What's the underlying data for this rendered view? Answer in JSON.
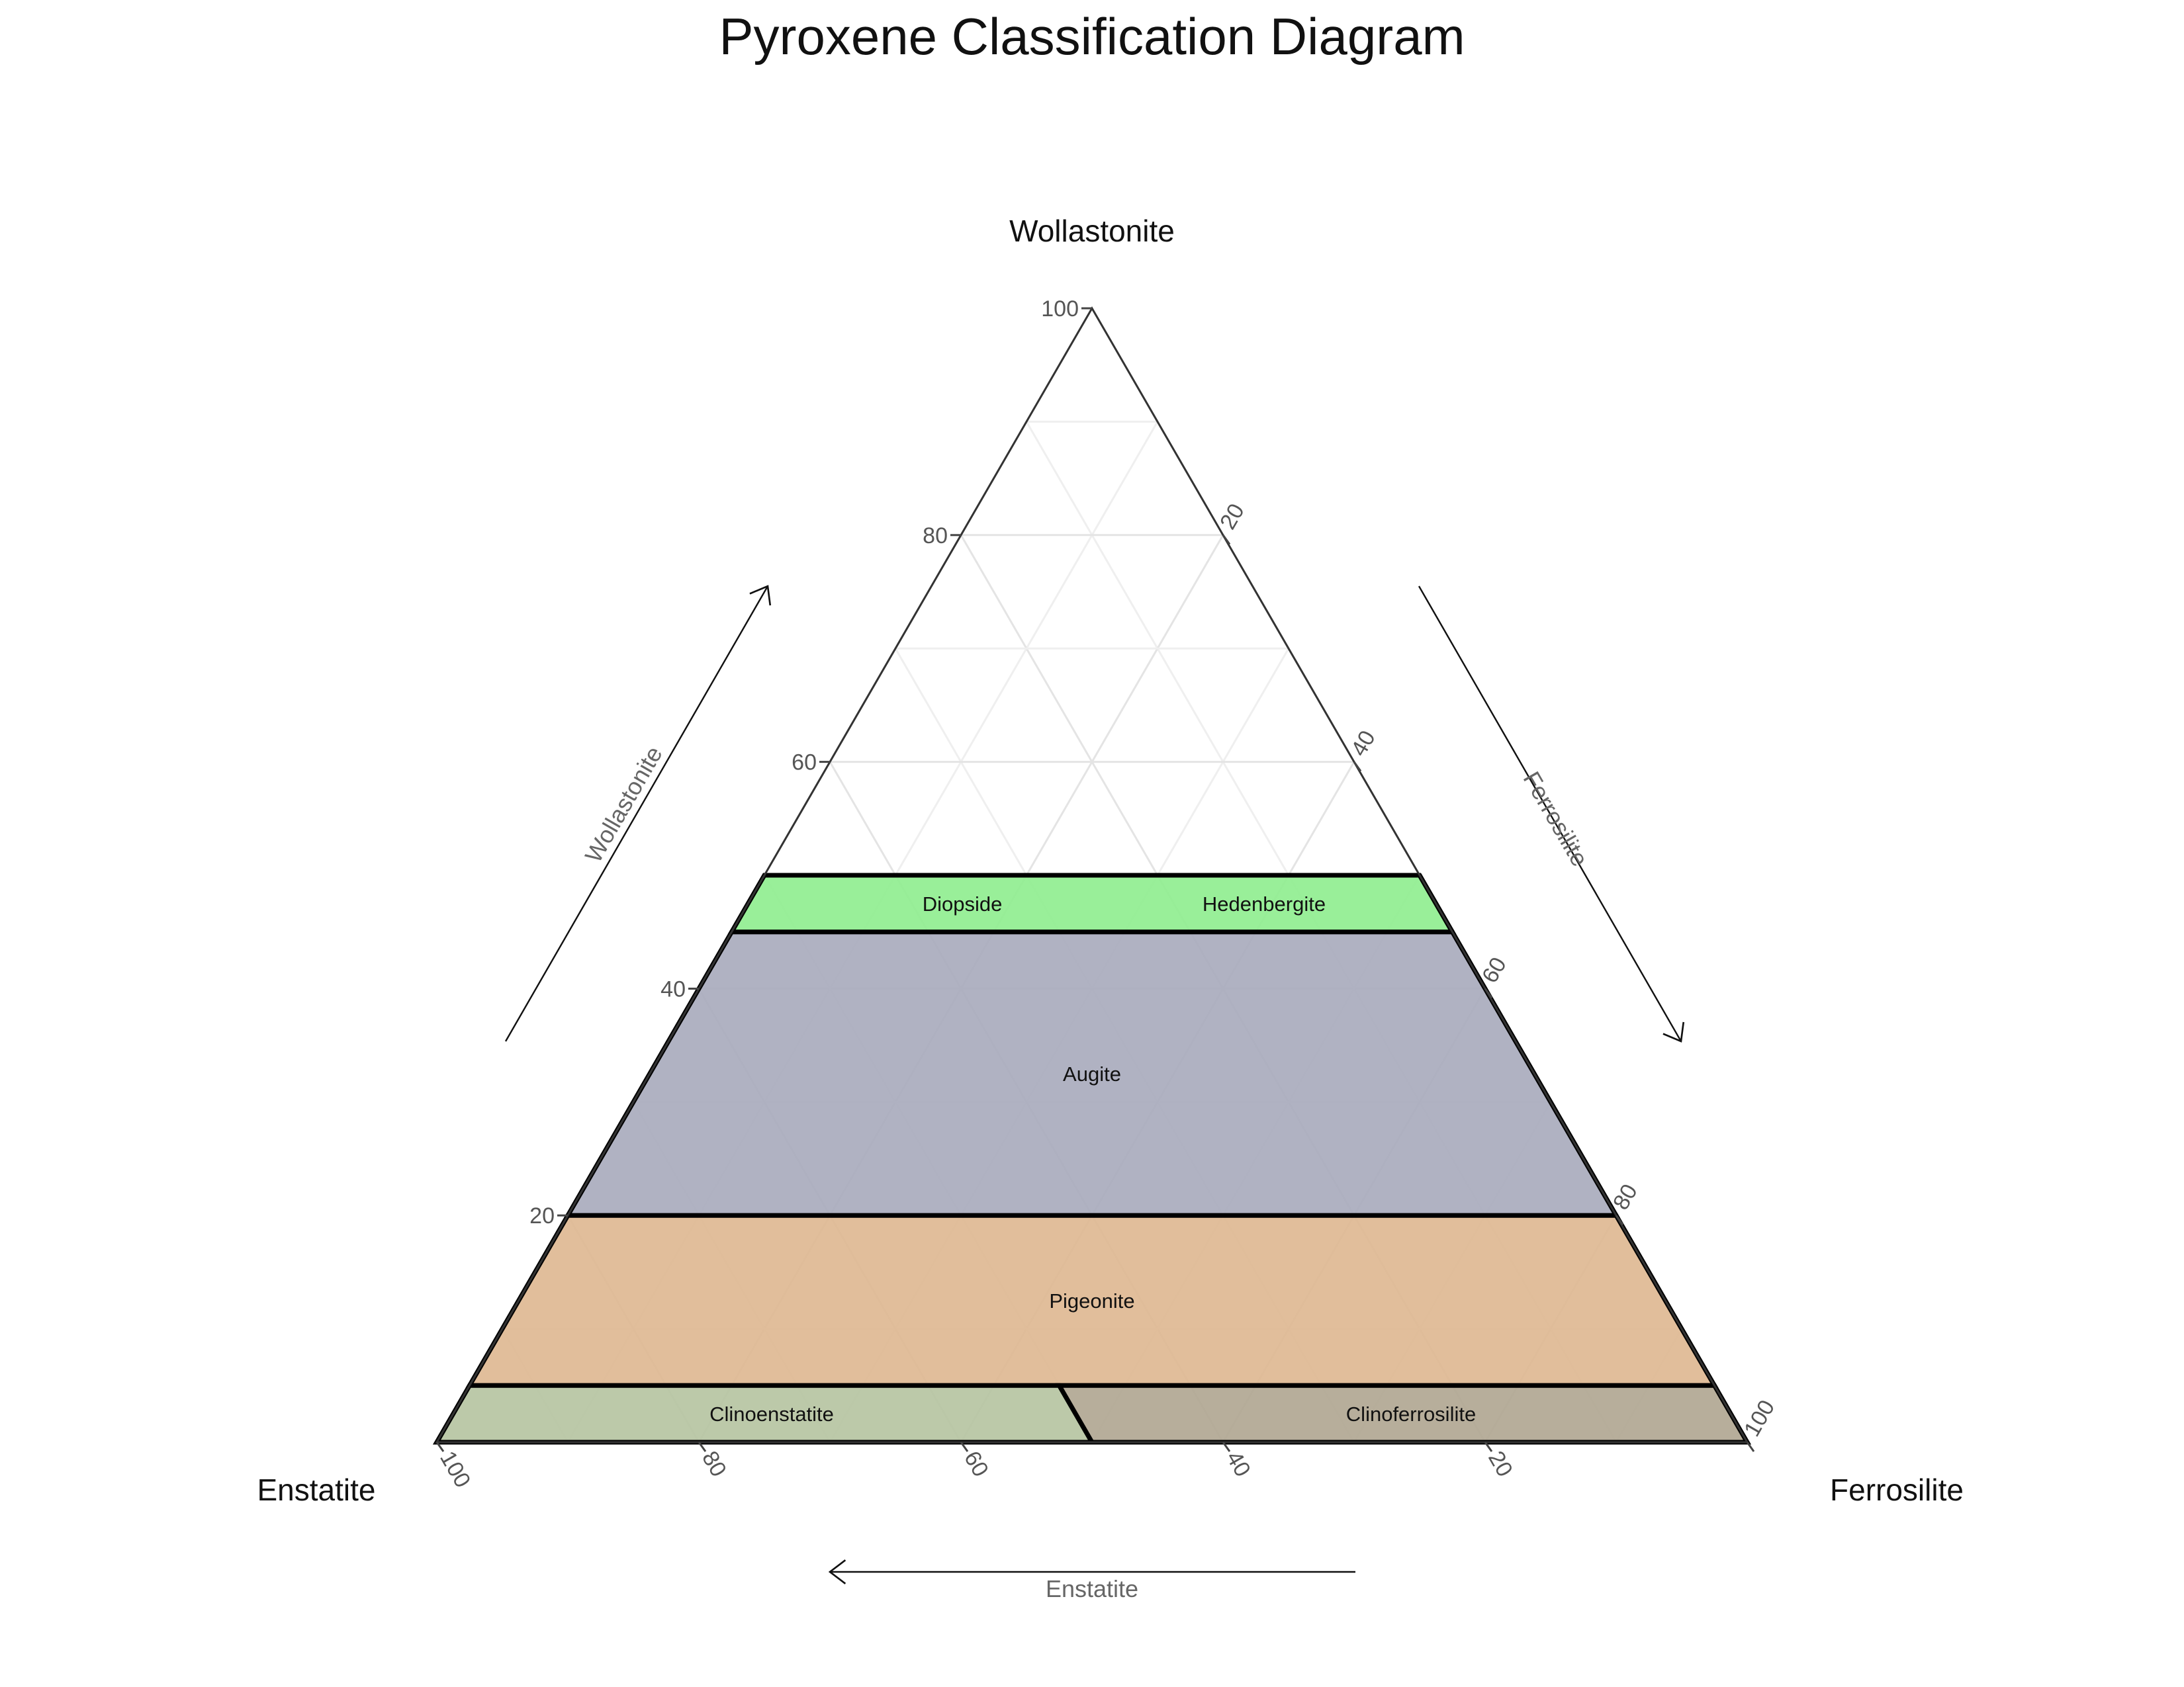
{
  "chart_data": {
    "type": "ternary",
    "title": "Pyroxene Classification Diagram",
    "apexes": {
      "top": "Wollastonite",
      "left": "Enstatite",
      "right": "Ferrosilite"
    },
    "axis_titles": {
      "a": "Wollastonite",
      "b": "Ferrosilite",
      "c": "Enstatite"
    },
    "ticks": [
      20,
      40,
      60,
      80,
      100
    ],
    "grid": true,
    "regions": [
      {
        "name": "Diopside",
        "color": "#90EE90",
        "vertices": [
          {
            "Wo": 50,
            "En": 50,
            "Fs": 0
          },
          {
            "Wo": 50,
            "En": 0,
            "Fs": 50
          },
          {
            "Wo": 45,
            "En": 0,
            "Fs": 55
          },
          {
            "Wo": 45,
            "En": 55,
            "Fs": 0
          }
        ]
      },
      {
        "name": "Hedenbergite",
        "color": "#C1EEDF",
        "vertices": [
          {
            "Wo": 50,
            "En": 0,
            "Fs": 50
          },
          {
            "Wo": 50,
            "En": 0,
            "Fs": 50
          },
          {
            "Wo": 45,
            "En": 0,
            "Fs": 55
          },
          {
            "Wo": 45,
            "En": 0,
            "Fs": 55
          }
        ]
      },
      {
        "name": "Augite",
        "color": "#A9ABBD",
        "vertices": [
          {
            "Wo": 45,
            "En": 55,
            "Fs": 0
          },
          {
            "Wo": 45,
            "En": 0,
            "Fs": 55
          },
          {
            "Wo": 20,
            "En": 0,
            "Fs": 80
          },
          {
            "Wo": 20,
            "En": 80,
            "Fs": 0
          }
        ]
      },
      {
        "name": "Pigeonite",
        "color": "#DEB893",
        "vertices": [
          {
            "Wo": 20,
            "En": 80,
            "Fs": 0
          },
          {
            "Wo": 20,
            "En": 0,
            "Fs": 80
          },
          {
            "Wo": 5,
            "En": 0,
            "Fs": 95
          },
          {
            "Wo": 5,
            "En": 95,
            "Fs": 0
          }
        ]
      },
      {
        "name": "Clinoenstatite",
        "color": "#B6C4A2",
        "vertices": [
          {
            "Wo": 5,
            "En": 95,
            "Fs": 0
          },
          {
            "Wo": 5,
            "En": 50,
            "Fs": 45
          },
          {
            "Wo": 0,
            "En": 50,
            "Fs": 50
          },
          {
            "Wo": 0,
            "En": 100,
            "Fs": 0
          }
        ]
      },
      {
        "name": "Clinoferrosilite",
        "color": "#B1A792",
        "vertices": [
          {
            "Wo": 5,
            "En": 50,
            "Fs": 45
          },
          {
            "Wo": 5,
            "En": 0,
            "Fs": 95
          },
          {
            "Wo": 0,
            "En": 0,
            "Fs": 100
          },
          {
            "Wo": 0,
            "En": 50,
            "Fs": 50
          }
        ]
      }
    ]
  }
}
